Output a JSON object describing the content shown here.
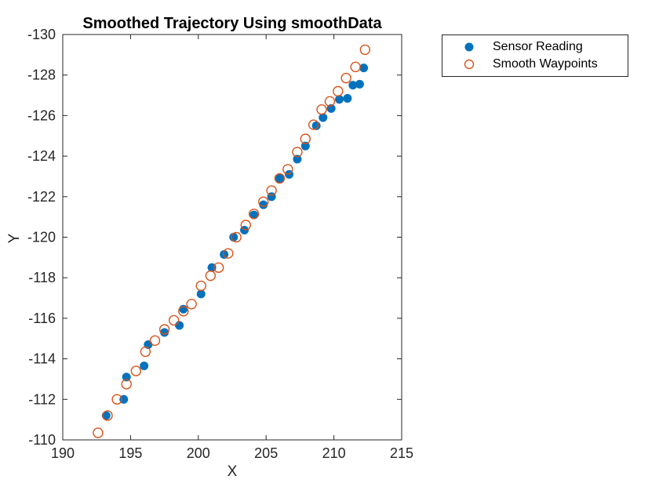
{
  "figure": {
    "background": "#ffffff"
  },
  "chart_data": {
    "type": "scatter",
    "title": "Smoothed Trajectory Using smoothData",
    "xlabel": "X",
    "ylabel": "Y",
    "xlim": [
      190,
      215
    ],
    "ylim": [
      -130,
      -110
    ],
    "y_axis_direction": "reversed",
    "x_ticks": [
      190,
      195,
      200,
      205,
      210,
      215
    ],
    "y_ticks": [
      -130,
      -128,
      -126,
      -124,
      -122,
      -120,
      -118,
      -116,
      -114,
      -112,
      -110
    ],
    "grid": false,
    "axis_color": "#262626",
    "legend": {
      "position": "outside-top-right"
    },
    "series": [
      {
        "name": "Sensor Reading",
        "marker": "filled-circle",
        "color": "#0072BD",
        "points": [
          [
            193.2,
            -111.2
          ],
          [
            194.5,
            -112.0
          ],
          [
            194.7,
            -113.1
          ],
          [
            196.0,
            -113.65
          ],
          [
            196.3,
            -114.7
          ],
          [
            197.5,
            -115.3
          ],
          [
            198.6,
            -115.65
          ],
          [
            198.9,
            -116.45
          ],
          [
            200.2,
            -117.2
          ],
          [
            201.0,
            -118.5
          ],
          [
            201.9,
            -119.15
          ],
          [
            202.6,
            -120.0
          ],
          [
            203.4,
            -120.35
          ],
          [
            204.1,
            -121.1
          ],
          [
            204.8,
            -121.6
          ],
          [
            205.4,
            -122.0
          ],
          [
            206.0,
            -122.9
          ],
          [
            206.7,
            -123.1
          ],
          [
            207.3,
            -123.85
          ],
          [
            207.9,
            -124.5
          ],
          [
            208.7,
            -125.5
          ],
          [
            209.2,
            -125.9
          ],
          [
            209.8,
            -126.35
          ],
          [
            210.4,
            -126.8
          ],
          [
            211.0,
            -126.85
          ],
          [
            211.4,
            -127.5
          ],
          [
            211.9,
            -127.55
          ],
          [
            212.2,
            -128.35
          ]
        ]
      },
      {
        "name": "Smooth Waypoints",
        "marker": "open-circle",
        "color": "#D95319",
        "points": [
          [
            192.6,
            -110.35
          ],
          [
            193.3,
            -111.2
          ],
          [
            194.0,
            -112.0
          ],
          [
            194.7,
            -112.75
          ],
          [
            195.4,
            -113.4
          ],
          [
            196.1,
            -114.35
          ],
          [
            196.8,
            -114.9
          ],
          [
            197.5,
            -115.45
          ],
          [
            198.2,
            -115.9
          ],
          [
            198.9,
            -116.35
          ],
          [
            199.5,
            -116.7
          ],
          [
            200.2,
            -117.6
          ],
          [
            200.9,
            -118.1
          ],
          [
            201.5,
            -118.5
          ],
          [
            202.2,
            -119.2
          ],
          [
            202.8,
            -120.0
          ],
          [
            203.5,
            -120.6
          ],
          [
            204.1,
            -121.15
          ],
          [
            204.8,
            -121.75
          ],
          [
            205.4,
            -122.3
          ],
          [
            206.0,
            -122.9
          ],
          [
            206.6,
            -123.35
          ],
          [
            207.3,
            -124.2
          ],
          [
            207.9,
            -124.85
          ],
          [
            208.5,
            -125.55
          ],
          [
            209.1,
            -126.3
          ],
          [
            209.7,
            -126.7
          ],
          [
            210.3,
            -127.2
          ],
          [
            210.9,
            -127.85
          ],
          [
            211.6,
            -128.4
          ],
          [
            212.3,
            -129.25
          ]
        ]
      }
    ]
  }
}
